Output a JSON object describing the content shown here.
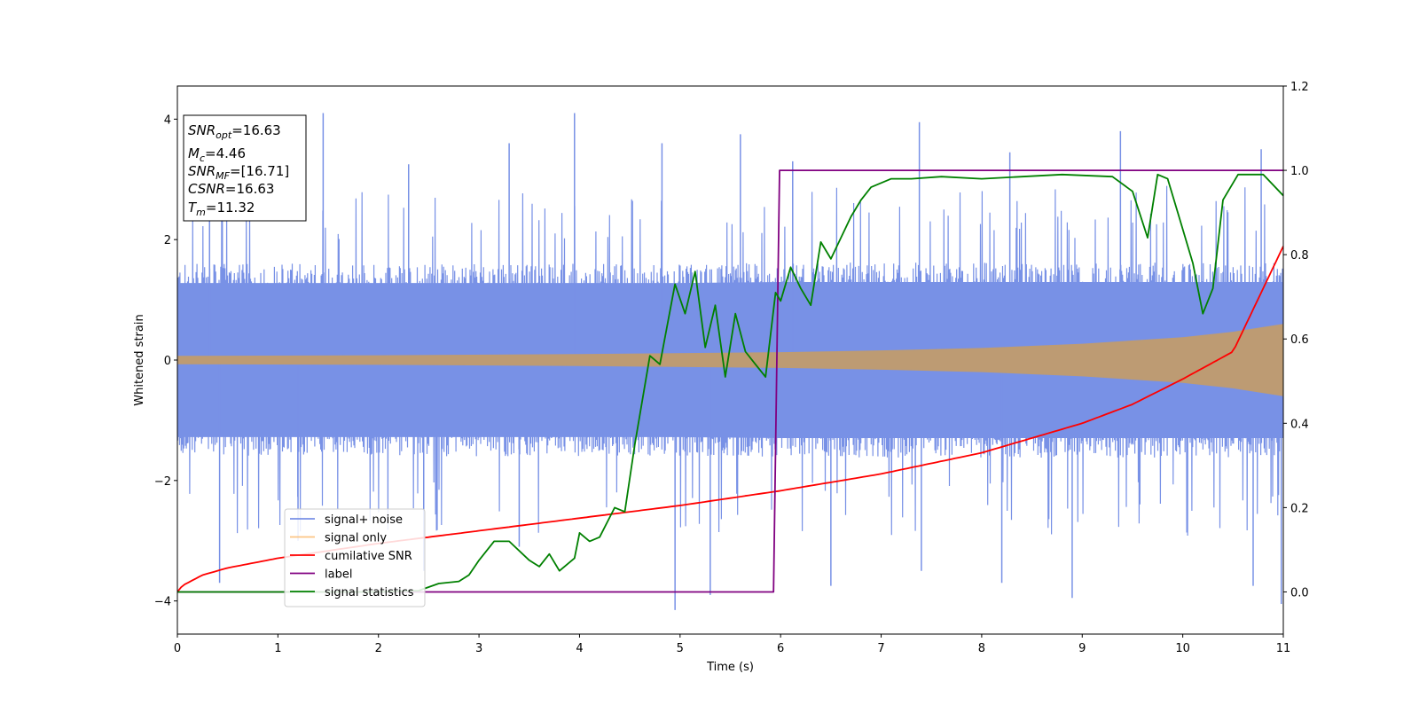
{
  "chart_data": {
    "type": "line",
    "title": "",
    "xlabel": "Time (s)",
    "ylabel": "Whitened strain",
    "y2label": "",
    "xlim": [
      0,
      11
    ],
    "ylim": [
      -4.55,
      4.55
    ],
    "y2lim": [
      -0.1,
      1.2
    ],
    "xticks": [
      0,
      1,
      2,
      3,
      4,
      5,
      6,
      7,
      8,
      9,
      10,
      11
    ],
    "yticks": [
      -4,
      -2,
      0,
      2,
      4
    ],
    "y2ticks": [
      0.0,
      0.2,
      0.4,
      0.6,
      0.8,
      1.0,
      1.2
    ],
    "grid": false,
    "legend_position": "lower-left",
    "info_box": {
      "snr_opt": {
        "main": "SNR",
        "sub": "opt",
        "value": "=16.63"
      },
      "mc": {
        "main": "M",
        "sub": "c",
        "value": "=4.46"
      },
      "snr_mf": {
        "main": "SNR",
        "sub": "MF",
        "value": "=[16.71]"
      },
      "csnr": {
        "main": "CSNR",
        "value": "=16.63"
      },
      "tm": {
        "main": "T",
        "sub": "m",
        "value": "=11.32"
      }
    },
    "series": [
      {
        "name": "signal+ noise",
        "axis": "left",
        "color": "#7891e6",
        "envelope_upper": [
          [
            0,
            1.6
          ],
          [
            1,
            1.6
          ],
          [
            2,
            1.6
          ],
          [
            3,
            1.6
          ],
          [
            4,
            1.6
          ],
          [
            5,
            1.6
          ],
          [
            6,
            1.62
          ],
          [
            7,
            1.62
          ],
          [
            8,
            1.62
          ],
          [
            9,
            1.62
          ],
          [
            10,
            1.62
          ],
          [
            11,
            1.62
          ]
        ],
        "envelope_lower": [
          [
            0,
            -1.6
          ],
          [
            1,
            -1.6
          ],
          [
            2,
            -1.6
          ],
          [
            3,
            -1.6
          ],
          [
            4,
            -1.6
          ],
          [
            5,
            -1.6
          ],
          [
            6,
            -1.62
          ],
          [
            7,
            -1.62
          ],
          [
            8,
            -1.62
          ],
          [
            9,
            -1.62
          ],
          [
            10,
            -1.62
          ],
          [
            11,
            -1.62
          ]
        ],
        "peaks": [
          [
            0.32,
            2.75
          ],
          [
            1.45,
            4.1
          ],
          [
            2.3,
            3.25
          ],
          [
            3.3,
            3.6
          ],
          [
            3.95,
            4.1
          ],
          [
            4.82,
            3.6
          ],
          [
            5.6,
            3.75
          ],
          [
            6.12,
            3.3
          ],
          [
            7.38,
            3.95
          ],
          [
            8.28,
            3.45
          ],
          [
            9.38,
            3.8
          ],
          [
            10.78,
            3.5
          ]
        ],
        "troughs": [
          [
            0.42,
            -3.7
          ],
          [
            1.2,
            -3.0
          ],
          [
            2.45,
            -3.5
          ],
          [
            3.4,
            -3.1
          ],
          [
            4.95,
            -4.15
          ],
          [
            5.3,
            -3.9
          ],
          [
            6.5,
            -3.75
          ],
          [
            7.4,
            -3.5
          ],
          [
            8.2,
            -3.7
          ],
          [
            8.9,
            -3.95
          ],
          [
            10.7,
            -3.75
          ],
          [
            10.98,
            -4.05
          ]
        ]
      },
      {
        "name": "signal only",
        "axis": "left",
        "color": "#fbc584",
        "envelope": [
          [
            0,
            0.07
          ],
          [
            2,
            0.08
          ],
          [
            4,
            0.1
          ],
          [
            6,
            0.13
          ],
          [
            7,
            0.16
          ],
          [
            8,
            0.2
          ],
          [
            9,
            0.27
          ],
          [
            10,
            0.38
          ],
          [
            10.5,
            0.47
          ],
          [
            11,
            0.6
          ]
        ]
      },
      {
        "name": "cumilative SNR",
        "axis": "right",
        "color": "#ff0000",
        "points": [
          [
            0,
            0.0
          ],
          [
            0.05,
            0.015
          ],
          [
            0.25,
            0.04
          ],
          [
            0.5,
            0.057
          ],
          [
            1,
            0.08
          ],
          [
            2,
            0.115
          ],
          [
            3,
            0.145
          ],
          [
            4,
            0.175
          ],
          [
            5,
            0.205
          ],
          [
            6,
            0.24
          ],
          [
            7,
            0.28
          ],
          [
            8,
            0.33
          ],
          [
            9,
            0.4
          ],
          [
            9.5,
            0.445
          ],
          [
            10,
            0.505
          ],
          [
            10.5,
            0.57
          ],
          [
            11,
            0.82
          ]
        ]
      },
      {
        "name": "label",
        "axis": "right",
        "color": "#800080",
        "points": [
          [
            0,
            0.0
          ],
          [
            5.93,
            0.0
          ],
          [
            5.99,
            1.0
          ],
          [
            11,
            1.0
          ]
        ]
      },
      {
        "name": "signal statistics",
        "axis": "right",
        "color": "#008000",
        "points": [
          [
            0,
            0.0
          ],
          [
            1,
            0.0
          ],
          [
            2,
            0.0
          ],
          [
            2.4,
            0.003
          ],
          [
            2.6,
            0.02
          ],
          [
            2.8,
            0.025
          ],
          [
            2.9,
            0.04
          ],
          [
            3.0,
            0.075
          ],
          [
            3.15,
            0.12
          ],
          [
            3.3,
            0.12
          ],
          [
            3.5,
            0.075
          ],
          [
            3.6,
            0.06
          ],
          [
            3.7,
            0.09
          ],
          [
            3.8,
            0.05
          ],
          [
            3.95,
            0.08
          ],
          [
            4.0,
            0.14
          ],
          [
            4.1,
            0.12
          ],
          [
            4.2,
            0.13
          ],
          [
            4.35,
            0.2
          ],
          [
            4.45,
            0.19
          ],
          [
            4.55,
            0.35
          ],
          [
            4.7,
            0.56
          ],
          [
            4.8,
            0.54
          ],
          [
            4.95,
            0.73
          ],
          [
            5.05,
            0.66
          ],
          [
            5.15,
            0.76
          ],
          [
            5.25,
            0.58
          ],
          [
            5.35,
            0.68
          ],
          [
            5.45,
            0.51
          ],
          [
            5.55,
            0.66
          ],
          [
            5.65,
            0.57
          ],
          [
            5.75,
            0.54
          ],
          [
            5.85,
            0.51
          ],
          [
            5.95,
            0.71
          ],
          [
            6.0,
            0.69
          ],
          [
            6.1,
            0.77
          ],
          [
            6.2,
            0.72
          ],
          [
            6.3,
            0.68
          ],
          [
            6.4,
            0.83
          ],
          [
            6.5,
            0.79
          ],
          [
            6.6,
            0.84
          ],
          [
            6.7,
            0.89
          ],
          [
            6.8,
            0.93
          ],
          [
            6.9,
            0.96
          ],
          [
            7.1,
            0.98
          ],
          [
            7.3,
            0.98
          ],
          [
            7.6,
            0.985
          ],
          [
            8.0,
            0.98
          ],
          [
            8.4,
            0.985
          ],
          [
            8.8,
            0.99
          ],
          [
            9.3,
            0.985
          ],
          [
            9.5,
            0.95
          ],
          [
            9.65,
            0.84
          ],
          [
            9.75,
            0.99
          ],
          [
            9.85,
            0.98
          ],
          [
            9.95,
            0.9
          ],
          [
            10.1,
            0.78
          ],
          [
            10.2,
            0.66
          ],
          [
            10.3,
            0.72
          ],
          [
            10.4,
            0.93
          ],
          [
            10.55,
            0.99
          ],
          [
            10.8,
            0.99
          ],
          [
            11,
            0.94
          ]
        ]
      }
    ]
  }
}
